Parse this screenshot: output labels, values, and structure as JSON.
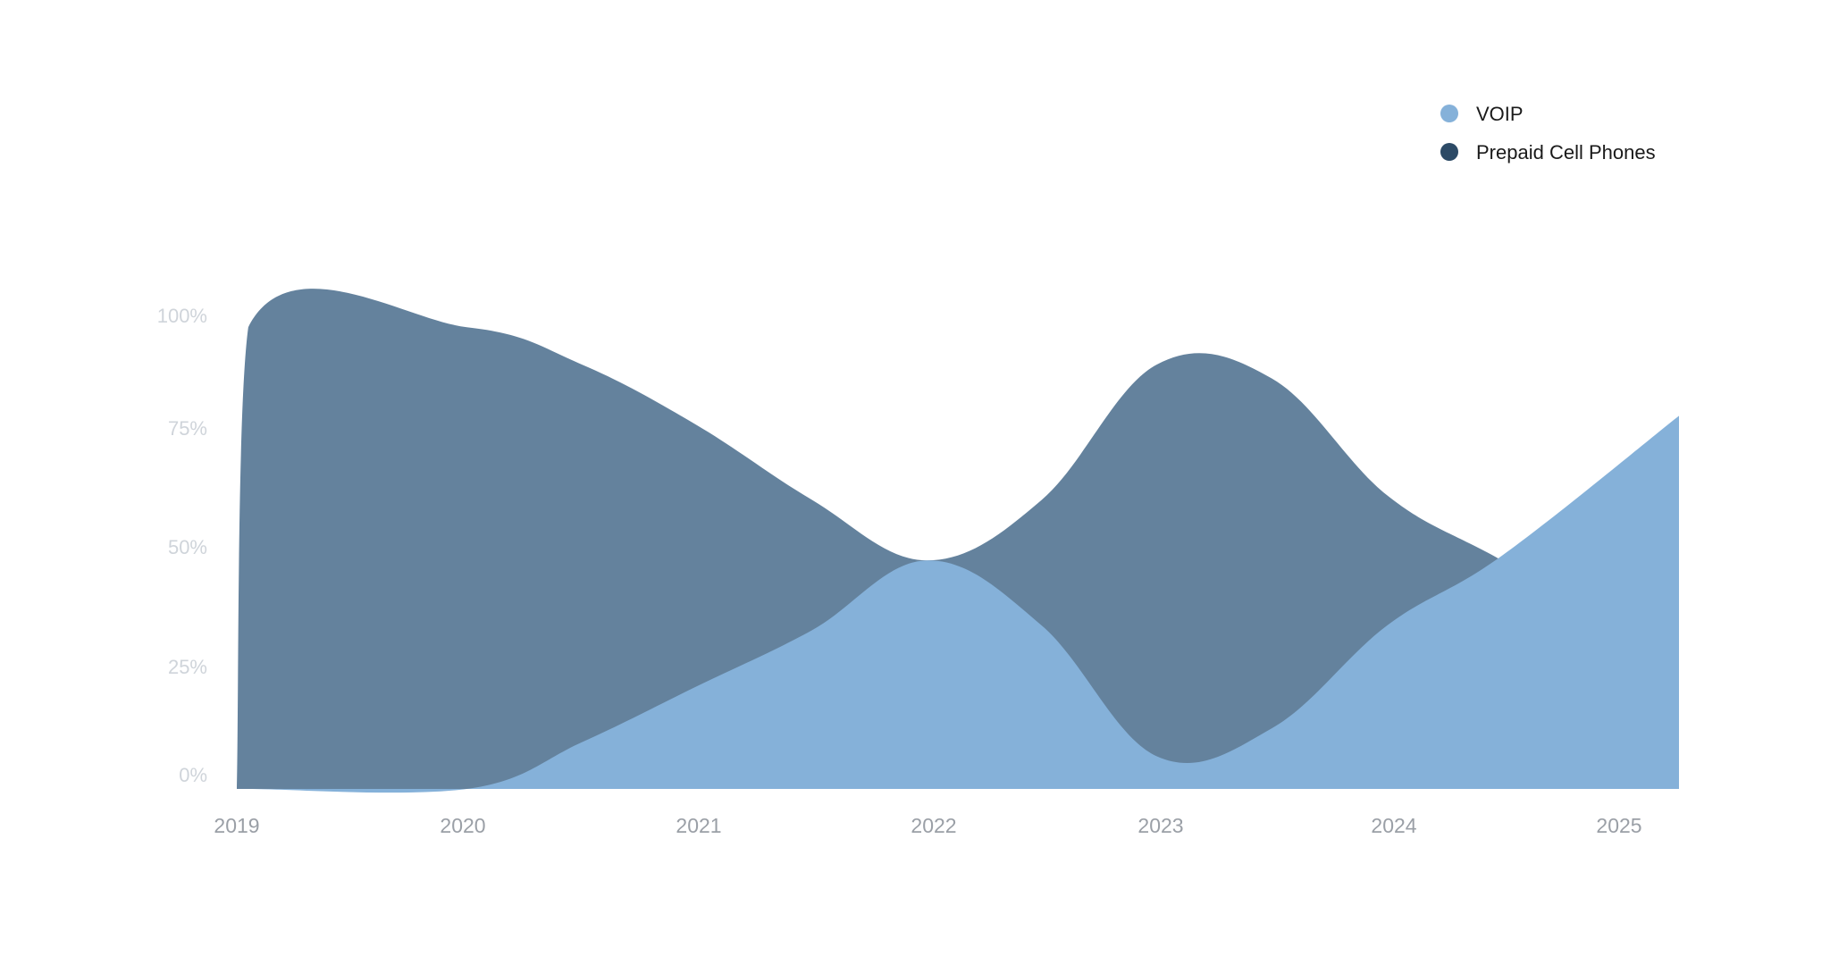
{
  "chart_data": {
    "type": "area",
    "title": "",
    "xlabel": "",
    "ylabel": "",
    "x": [
      2019.0,
      2019.05,
      2020.0,
      2020.5,
      2021.0,
      2021.5,
      2022.0,
      2022.5,
      2023.0,
      2023.5,
      2024.0,
      2024.5,
      2025.27
    ],
    "x_ticks": [
      "2019",
      "2020",
      "2021",
      "2022",
      "2023",
      "2024",
      "2025"
    ],
    "y_ticks": [
      "100%",
      "75%",
      "50%",
      "25%",
      "0%"
    ],
    "ylim": [
      0,
      100
    ],
    "grid": false,
    "legend_position": "top-right",
    "series": [
      {
        "name": "VOIP",
        "color": "#85b1d9",
        "values": [
          0,
          0,
          0,
          10,
          22,
          34,
          49,
          35,
          7,
          13,
          35,
          50,
          80
        ]
      },
      {
        "name": "Prepaid Cell Phones",
        "color": "#2c4a66",
        "area_color": "#64829d",
        "values": [
          0,
          99,
          99,
          91,
          78,
          62,
          49,
          62,
          91,
          88,
          63,
          49,
          28
        ]
      }
    ]
  }
}
